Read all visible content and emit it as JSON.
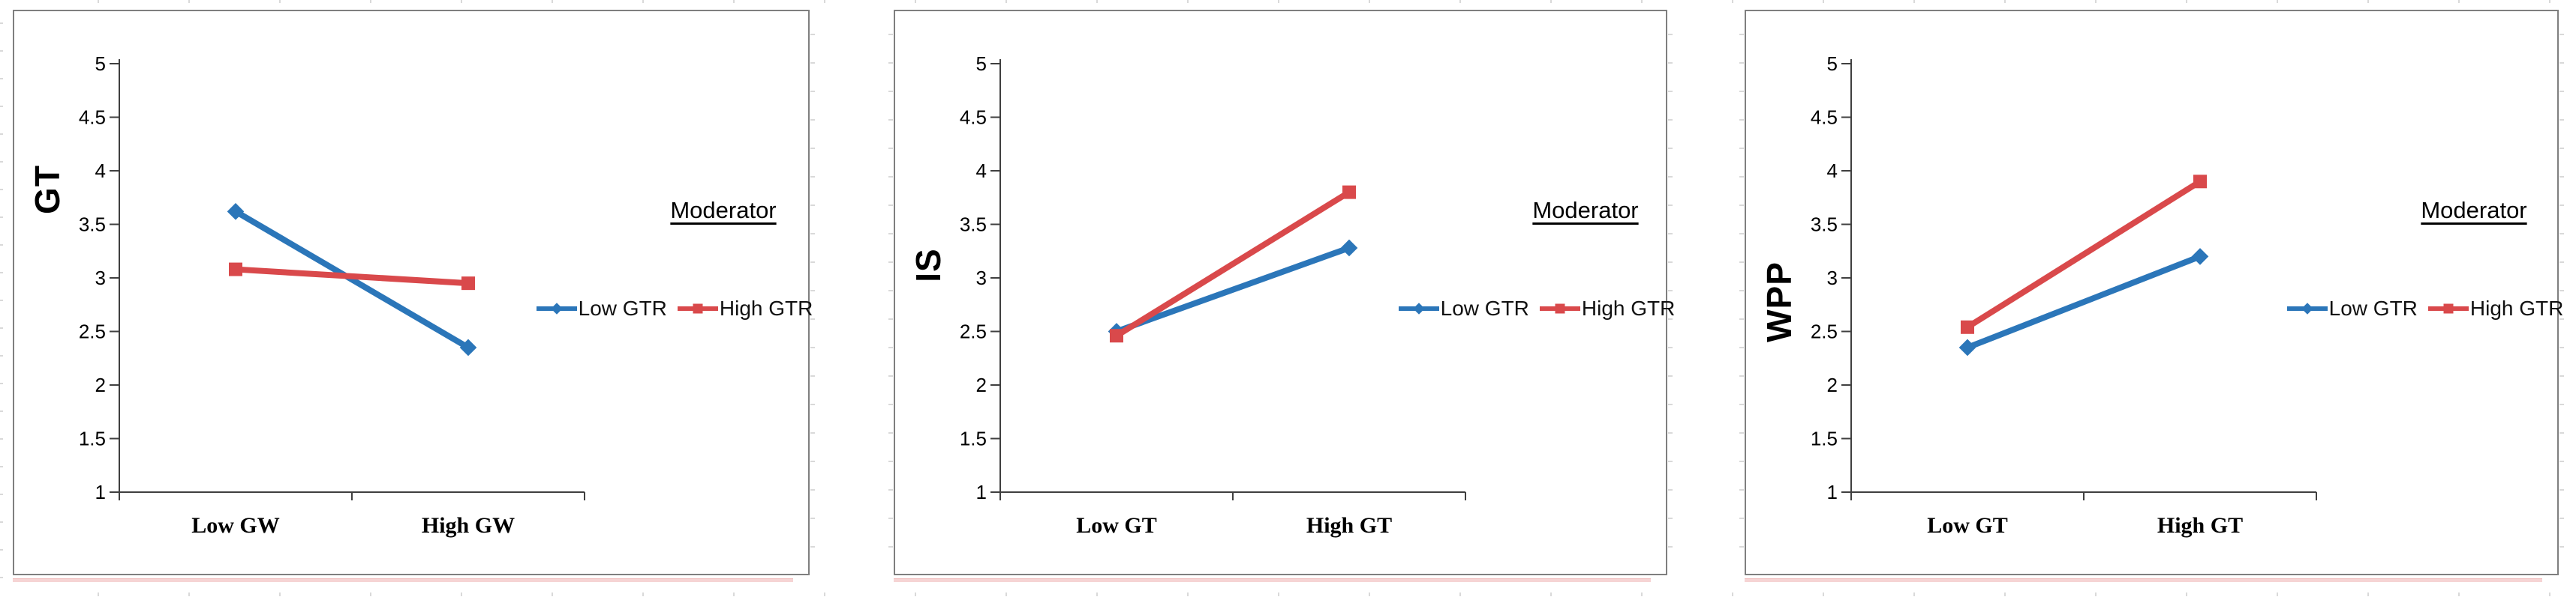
{
  "page": {
    "background": "#ffffff",
    "panel_border_color": "#7f7f7f",
    "accent_blue": "#2B76B9",
    "accent_red": "#D9494B"
  },
  "chart_data": [
    {
      "type": "line",
      "ylabel": "GT",
      "categories": [
        "Low GW",
        "High GW"
      ],
      "series": [
        {
          "name": "Low GTR",
          "marker": "diamond",
          "color": "#2B76B9",
          "values": [
            3.62,
            2.35
          ]
        },
        {
          "name": "High GTR",
          "marker": "square",
          "color": "#D9494B",
          "values": [
            3.08,
            2.95
          ]
        }
      ],
      "legend_title": "Moderator",
      "legend_position": "right-inside",
      "ylim": [
        1,
        5
      ],
      "yticks": [
        1,
        1.5,
        2,
        2.5,
        3,
        3.5,
        4,
        4.5,
        5
      ],
      "grid": false
    },
    {
      "type": "line",
      "ylabel": "IS",
      "categories": [
        "Low GT",
        "High GT"
      ],
      "series": [
        {
          "name": "Low GTR",
          "marker": "diamond",
          "color": "#2B76B9",
          "values": [
            2.5,
            3.28
          ]
        },
        {
          "name": "High GTR",
          "marker": "square",
          "color": "#D9494B",
          "values": [
            2.46,
            3.8
          ]
        }
      ],
      "legend_title": "Moderator",
      "legend_position": "right-inside",
      "ylim": [
        1,
        5
      ],
      "yticks": [
        1,
        1.5,
        2,
        2.5,
        3,
        3.5,
        4,
        4.5,
        5
      ],
      "grid": false
    },
    {
      "type": "line",
      "ylabel": "WPP",
      "categories": [
        "Low GT",
        "High GT"
      ],
      "series": [
        {
          "name": "Low GTR",
          "marker": "diamond",
          "color": "#2B76B9",
          "values": [
            2.35,
            3.2
          ]
        },
        {
          "name": "High GTR",
          "marker": "square",
          "color": "#D9494B",
          "values": [
            2.54,
            3.9
          ]
        }
      ],
      "legend_title": "Moderator",
      "legend_position": "right-inside",
      "ylim": [
        1,
        5
      ],
      "yticks": [
        1,
        1.5,
        2,
        2.5,
        3,
        3.5,
        4,
        4.5,
        5
      ],
      "grid": false
    }
  ]
}
